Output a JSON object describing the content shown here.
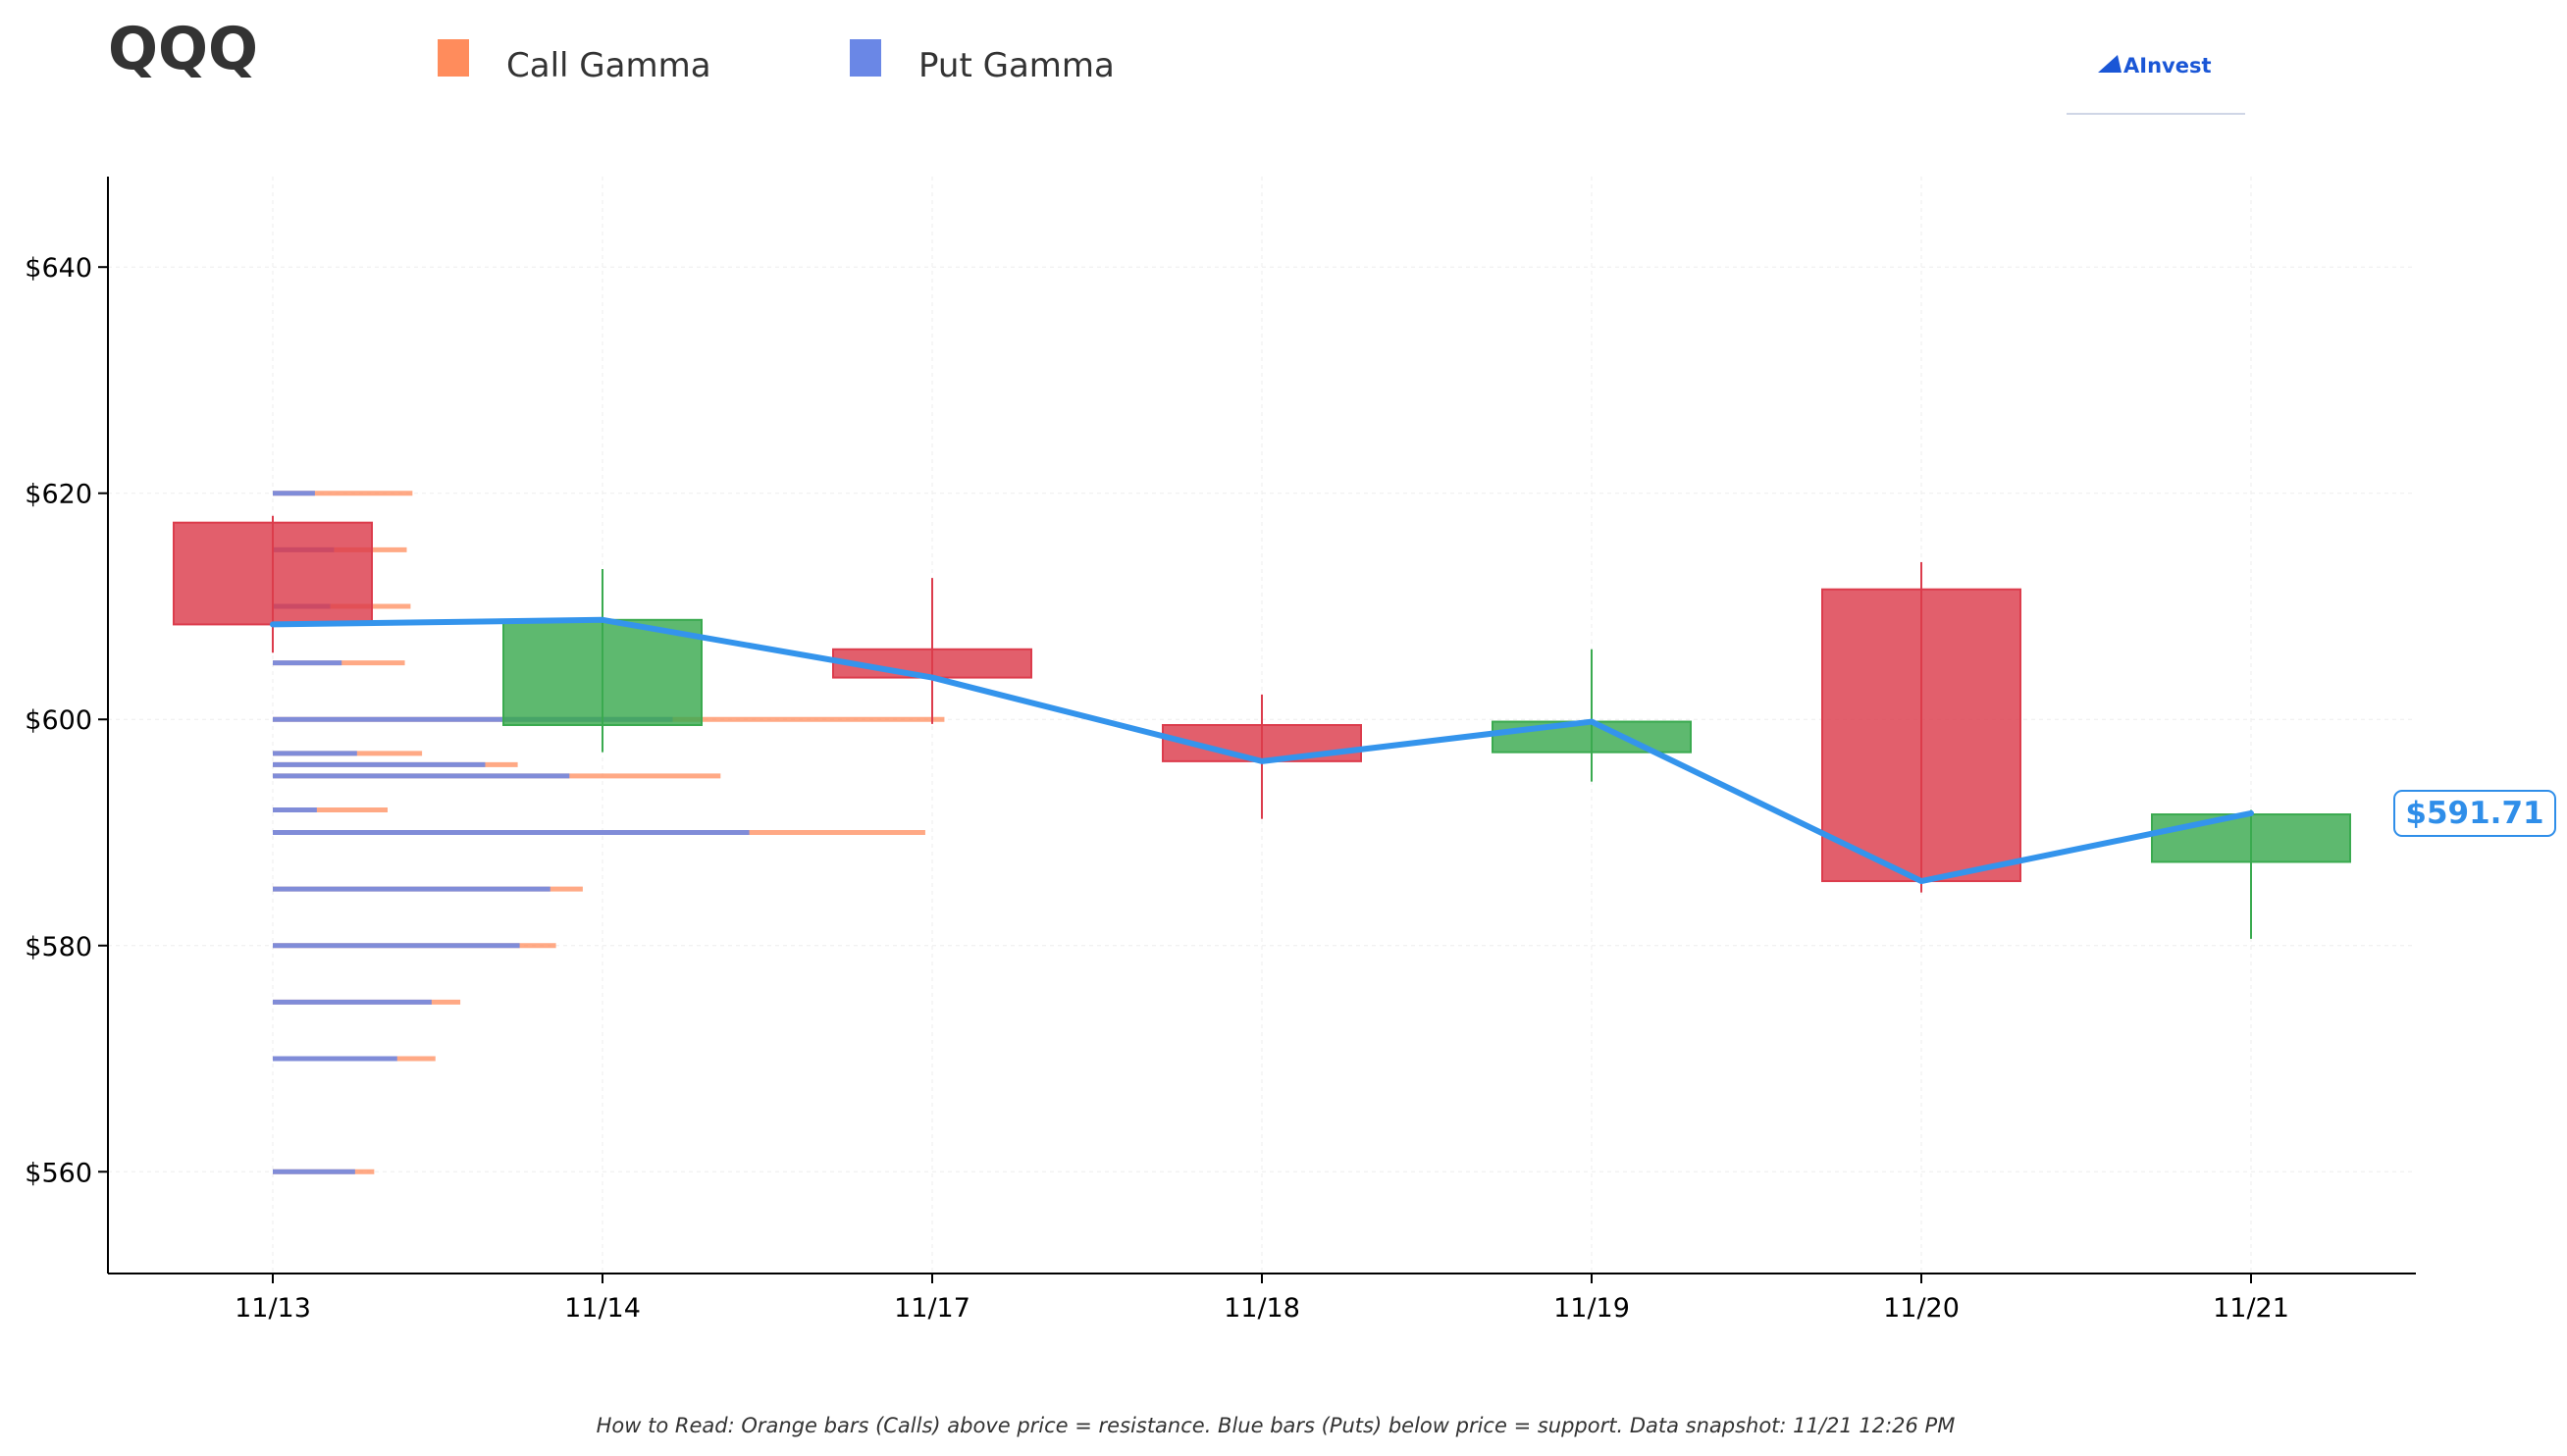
{
  "chart_data": {
    "type": "candlestick",
    "title": "QQQ",
    "legend": {
      "placement": "top",
      "items": [
        {
          "label": "Call Gamma",
          "color": "#ff8c5c"
        },
        {
          "label": "Put Gamma",
          "color": "#6a87e6"
        }
      ]
    },
    "brand": "AInvest",
    "categories": [
      "11/13",
      "11/14",
      "11/17",
      "11/18",
      "11/19",
      "11/20",
      "11/21"
    ],
    "candles": [
      {
        "date": "11/13",
        "open": 617.4,
        "close": 608.4,
        "high": 618.0,
        "low": 605.9
      },
      {
        "date": "11/14",
        "open": 599.5,
        "close": 608.8,
        "high": 613.3,
        "low": 597.1
      },
      {
        "date": "11/17",
        "open": 606.2,
        "close": 603.7,
        "high": 612.5,
        "low": 599.6
      },
      {
        "date": "11/18",
        "open": 599.5,
        "close": 596.3,
        "high": 602.2,
        "low": 591.2
      },
      {
        "date": "11/19",
        "open": 597.1,
        "close": 599.8,
        "high": 606.2,
        "low": 594.5
      },
      {
        "date": "11/20",
        "open": 611.5,
        "close": 585.7,
        "high": 613.9,
        "low": 584.7
      },
      {
        "date": "11/21",
        "open": 587.4,
        "close": 591.6,
        "high": 592.0,
        "low": 580.6
      }
    ],
    "close_line": [
      608.4,
      608.8,
      603.7,
      596.3,
      599.8,
      585.7,
      591.7
    ],
    "current_price_label": "$591.71",
    "gamma_levels": [
      {
        "strike": 620,
        "put": 0.22,
        "call": 0.73
      },
      {
        "strike": 615,
        "put": 0.32,
        "call": 0.7
      },
      {
        "strike": 610,
        "put": 0.3,
        "call": 0.72
      },
      {
        "strike": 605,
        "put": 0.36,
        "call": 0.69
      },
      {
        "strike": 600,
        "put": 2.09,
        "call": 3.51
      },
      {
        "strike": 597,
        "put": 0.44,
        "call": 0.78
      },
      {
        "strike": 596,
        "put": 1.11,
        "call": 1.28
      },
      {
        "strike": 595,
        "put": 1.55,
        "call": 2.34
      },
      {
        "strike": 592,
        "put": 0.23,
        "call": 0.6
      },
      {
        "strike": 590,
        "put": 2.49,
        "call": 3.41
      },
      {
        "strike": 585,
        "put": 1.45,
        "call": 1.62
      },
      {
        "strike": 580,
        "put": 1.29,
        "call": 1.48
      },
      {
        "strike": 575,
        "put": 0.83,
        "call": 0.98
      },
      {
        "strike": 570,
        "put": 0.65,
        "call": 0.85
      },
      {
        "strike": 560,
        "put": 0.43,
        "call": 0.53
      }
    ],
    "yticks": [
      560,
      580,
      600,
      620,
      640
    ],
    "ytick_labels": [
      "$560",
      "$580",
      "$600",
      "$620",
      "$640"
    ],
    "ylim": [
      551,
      648
    ],
    "grid": true,
    "footnote": "How to Read: Orange bars (Calls) above price = resistance. Blue bars (Puts) below price = support. Data snapshot: 11/21 12:26 PM"
  }
}
